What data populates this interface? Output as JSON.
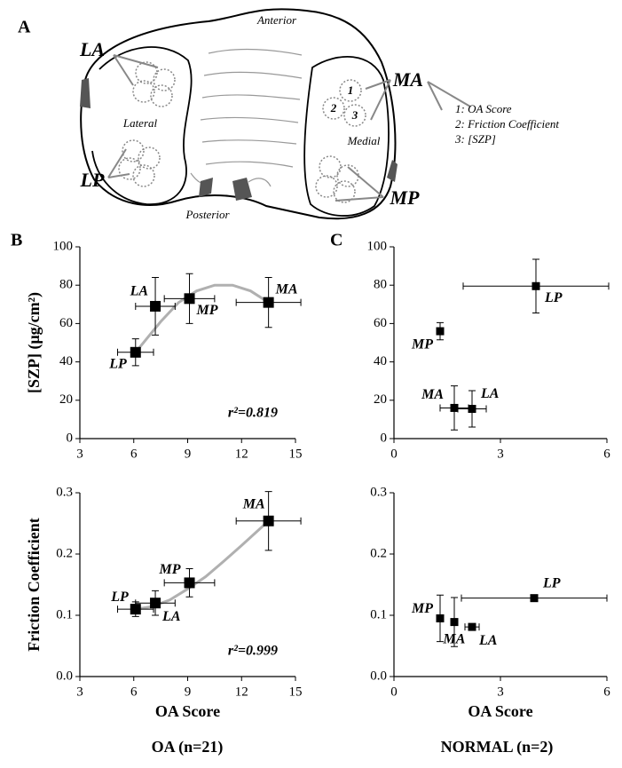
{
  "diagram": {
    "panel": "A",
    "anterior": "Anterior",
    "posterior": "Posterior",
    "lateral": "Lateral",
    "medial": "Medial",
    "regions": [
      "LA",
      "LP",
      "MA",
      "MP"
    ],
    "site_numbers": [
      "1",
      "2",
      "3"
    ],
    "legend": [
      "1: OA Score",
      "2: Friction Coefficient",
      "3: [SZP]"
    ]
  },
  "panels": [
    "B",
    "C"
  ],
  "footers": [
    "OA (n=21)",
    "NORMAL (n=2)"
  ],
  "chart_data": [
    {
      "type": "scatter",
      "ylabel": "[SZP] (μg/cm²)",
      "labels": [
        "LP",
        "LA",
        "MP",
        "MA"
      ],
      "x": [
        6.1,
        7.2,
        9.1,
        13.5
      ],
      "xerr": [
        1.0,
        1.1,
        1.4,
        1.8
      ],
      "values": [
        45,
        69,
        73,
        71
      ],
      "yerr": [
        7,
        15,
        13,
        13
      ],
      "fit": {
        "x": [
          6.1,
          7.5,
          8.5,
          9.5,
          10.5,
          11.5,
          12.5,
          13.5
        ],
        "y": [
          45,
          61,
          71,
          77,
          80,
          80,
          77,
          71
        ]
      },
      "annotation": "r²=0.819",
      "xlim": [
        3,
        15
      ],
      "xticks": [
        3,
        6,
        9,
        12,
        15
      ],
      "ylim": [
        0,
        100
      ],
      "yticks": [
        0,
        20,
        40,
        60,
        80,
        100
      ]
    },
    {
      "type": "scatter",
      "ylabel": "Friction Coefficient",
      "xlabel": "OA Score",
      "labels": [
        "LP",
        "LA",
        "MP",
        "MA"
      ],
      "x": [
        6.1,
        7.2,
        9.1,
        13.5
      ],
      "xerr": [
        1.0,
        1.1,
        1.4,
        1.8
      ],
      "values": [
        0.11,
        0.12,
        0.153,
        0.254
      ],
      "yerr": [
        0.012,
        0.02,
        0.023,
        0.048
      ],
      "fit": {
        "x": [
          6.1,
          7,
          8,
          9,
          10,
          11,
          12,
          13.5
        ],
        "y": [
          0.11,
          0.114,
          0.125,
          0.143,
          0.163,
          0.188,
          0.214,
          0.254
        ]
      },
      "annotation": "r²=0.999",
      "xlim": [
        3,
        15
      ],
      "xticks": [
        3,
        6,
        9,
        12,
        15
      ],
      "ylim": [
        0,
        0.3
      ],
      "yticks": [
        {
          "value": 0,
          "label": "0.0"
        },
        0.1,
        0.2,
        0.3
      ]
    },
    {
      "type": "scatter",
      "labels": [
        "LP",
        "MP",
        "MA",
        "LA"
      ],
      "x": [
        4.0,
        1.3,
        1.7,
        2.2
      ],
      "xerr": [
        2.05,
        0.1,
        0.4,
        0.4
      ],
      "values": [
        79.5,
        56,
        16,
        15.5
      ],
      "yerr": [
        14,
        4.5,
        11.5,
        9.5
      ],
      "xlim": [
        0,
        6
      ],
      "xticks": [
        0,
        3,
        6
      ],
      "ylim": [
        0,
        100
      ],
      "yticks": [
        0,
        20,
        40,
        60,
        80,
        100
      ]
    },
    {
      "type": "scatter",
      "xlabel": "OA Score",
      "labels": [
        "LP",
        "MP",
        "MA",
        "LA"
      ],
      "x": [
        3.95,
        1.3,
        1.7,
        2.2
      ],
      "xerr": [
        2.05,
        0.1,
        0.1,
        0.2
      ],
      "values": [
        0.128,
        0.095,
        0.089,
        0.081
      ],
      "yerr": [
        0.004,
        0.038,
        0.04,
        0.004
      ],
      "xlim": [
        0,
        6
      ],
      "xticks": [
        0,
        3,
        6
      ],
      "ylim": [
        0,
        0.3
      ],
      "yticks": [
        {
          "value": 0,
          "label": "0.0"
        },
        0.1,
        0.2,
        0.3
      ]
    }
  ]
}
